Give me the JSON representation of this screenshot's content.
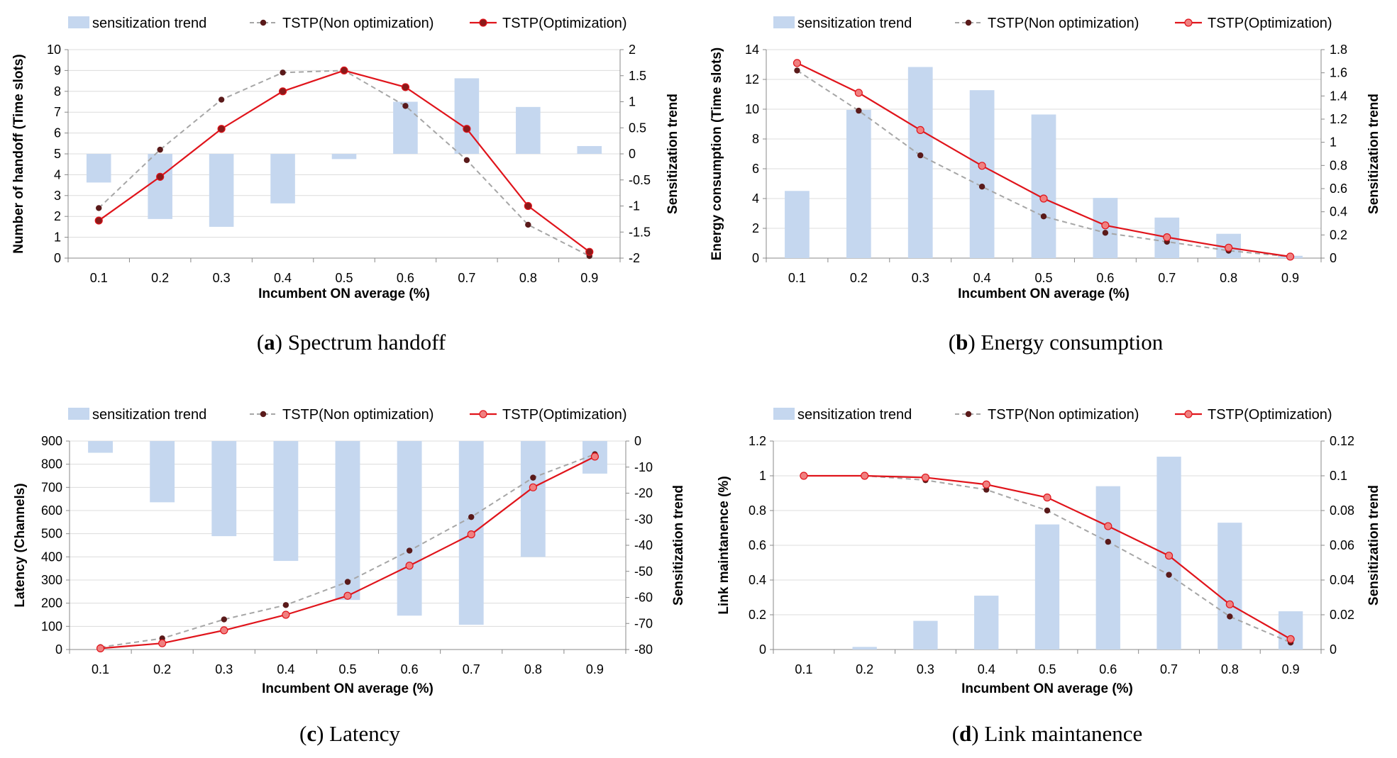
{
  "figure": {
    "legend": {
      "bar_label": "sensitization trend",
      "dashed_label": "TSTP(Non optimization)",
      "solid_label": "TSTP(Optimization)"
    }
  },
  "colors": {
    "bar": "#c5d7ef",
    "dashed_line": "#a6a6a6",
    "dashed_marker": "#5a1a1a",
    "solid_line": "#e0141b",
    "solid_marker_dark": "#8b1a1a",
    "solid_marker_light": "#f08080",
    "grid": "#dcdcdc"
  },
  "chart_data": [
    {
      "type": "bar+line",
      "caption_letter": "a",
      "caption_text": "Spectrum handoff",
      "xlabel": "Incumbent ON average (%)",
      "ylabel": "Number of handoff (Time slots)",
      "y2label": "Sensitization trend",
      "categories": [
        "0.1",
        "0.2",
        "0.3",
        "0.4",
        "0.5",
        "0.6",
        "0.7",
        "0.8",
        "0.9"
      ],
      "ylim": [
        0,
        10
      ],
      "yticks": [
        "0",
        "1",
        "2",
        "3",
        "4",
        "5",
        "6",
        "7",
        "8",
        "9",
        "10"
      ],
      "y2lim": [
        -2,
        2
      ],
      "y2ticks": [
        "-2",
        "-1.5",
        "-1",
        "-0.5",
        "0",
        "0.5",
        "1",
        "1.5",
        "2"
      ],
      "bar_values": [
        -0.55,
        -1.25,
        -1.4,
        -0.95,
        -0.1,
        1.0,
        1.45,
        0.9,
        0.15
      ],
      "series": [
        {
          "name": "TSTP(Non optimization)",
          "style": "dashed",
          "values": [
            2.4,
            5.2,
            7.6,
            8.9,
            9.0,
            7.3,
            4.7,
            1.6,
            0.1
          ]
        },
        {
          "name": "TSTP(Optimization)",
          "style": "solid",
          "values": [
            1.8,
            3.9,
            6.2,
            8.0,
            9.0,
            8.2,
            6.2,
            2.5,
            0.3
          ]
        }
      ],
      "grid": true,
      "legend_position": "top"
    },
    {
      "type": "bar+line",
      "caption_letter": "b",
      "caption_text": "Energy consumption",
      "xlabel": "Incumbent ON average (%)",
      "ylabel": "Energy consumption (Time slots)",
      "y2label": "Sensitization trend",
      "categories": [
        "0.1",
        "0.2",
        "0.3",
        "0.4",
        "0.5",
        "0.6",
        "0.7",
        "0.8",
        "0.9"
      ],
      "ylim": [
        0,
        14
      ],
      "yticks": [
        "0",
        "2",
        "4",
        "6",
        "8",
        "10",
        "12",
        "14"
      ],
      "y2lim": [
        0,
        1.8
      ],
      "y2ticks": [
        "0",
        "0.2",
        "0.4",
        "0.6",
        "0.8",
        "1",
        "1.2",
        "1.4",
        "1.6",
        "1.8"
      ],
      "bar_values": [
        0.58,
        1.28,
        1.65,
        1.45,
        1.24,
        0.52,
        0.35,
        0.21,
        0.02
      ],
      "series": [
        {
          "name": "TSTP(Non optimization)",
          "style": "dashed",
          "values": [
            12.6,
            9.9,
            6.9,
            4.8,
            2.8,
            1.7,
            1.1,
            0.5,
            0.1
          ]
        },
        {
          "name": "TSTP(Optimization)",
          "style": "solid",
          "values": [
            13.1,
            11.1,
            8.6,
            6.2,
            4.0,
            2.2,
            1.4,
            0.7,
            0.1
          ]
        }
      ],
      "grid": true,
      "legend_position": "top"
    },
    {
      "type": "bar+line",
      "caption_letter": "c",
      "caption_text": "Latency",
      "xlabel": "Incumbent ON average (%)",
      "ylabel": "Latency (Channels)",
      "y2label": "Sensitization trend",
      "categories": [
        "0.1",
        "0.2",
        "0.3",
        "0.4",
        "0.5",
        "0.6",
        "0.7",
        "0.8",
        "0.9"
      ],
      "ylim": [
        0,
        900
      ],
      "yticks": [
        "0",
        "100",
        "200",
        "300",
        "400",
        "500",
        "600",
        "700",
        "800",
        "900"
      ],
      "y2lim": [
        -80,
        0
      ],
      "y2ticks": [
        "-80",
        "-70",
        "-60",
        "-50",
        "-40",
        "-30",
        "-20",
        "-10",
        "0"
      ],
      "bar_values": [
        -4.5,
        -23.5,
        -36.5,
        -46,
        -61,
        -67,
        -70.5,
        -44.5,
        -12.5
      ],
      "series": [
        {
          "name": "TSTP(Non optimization)",
          "style": "dashed",
          "values": [
            10,
            48,
            130,
            192,
            292,
            427,
            572,
            742,
            843
          ]
        },
        {
          "name": "TSTP(Optimization)",
          "style": "solid",
          "values": [
            5,
            27,
            83,
            150,
            232,
            362,
            497,
            700,
            833
          ]
        }
      ],
      "grid": true,
      "legend_position": "top"
    },
    {
      "type": "bar+line",
      "caption_letter": "d",
      "caption_text": "Link maintanence",
      "xlabel": "Incumbent ON average (%)",
      "ylabel": "Link maintanence (%)",
      "y2label": "Sensitization trend",
      "categories": [
        "0.1",
        "0.2",
        "0.3",
        "0.4",
        "0.5",
        "0.6",
        "0.7",
        "0.8",
        "0.9"
      ],
      "ylim": [
        0,
        1.2
      ],
      "yticks": [
        "0",
        "0.2",
        "0.4",
        "0.6",
        "0.8",
        "1",
        "1.2"
      ],
      "y2lim": [
        0,
        0.12
      ],
      "y2ticks": [
        "0",
        "0.02",
        "0.04",
        "0.06",
        "0.08",
        "0.1",
        "0.12"
      ],
      "bar_values": [
        0,
        0.0015,
        0.0165,
        0.031,
        0.072,
        0.094,
        0.111,
        0.073,
        0.022
      ],
      "series": [
        {
          "name": "TSTP(Non optimization)",
          "style": "dashed",
          "values": [
            1.0,
            1.0,
            0.975,
            0.92,
            0.8,
            0.62,
            0.43,
            0.19,
            0.04
          ]
        },
        {
          "name": "TSTP(Optimization)",
          "style": "solid",
          "values": [
            1.0,
            1.0,
            0.99,
            0.95,
            0.875,
            0.71,
            0.54,
            0.26,
            0.06
          ]
        }
      ],
      "grid": true,
      "legend_position": "top"
    }
  ]
}
